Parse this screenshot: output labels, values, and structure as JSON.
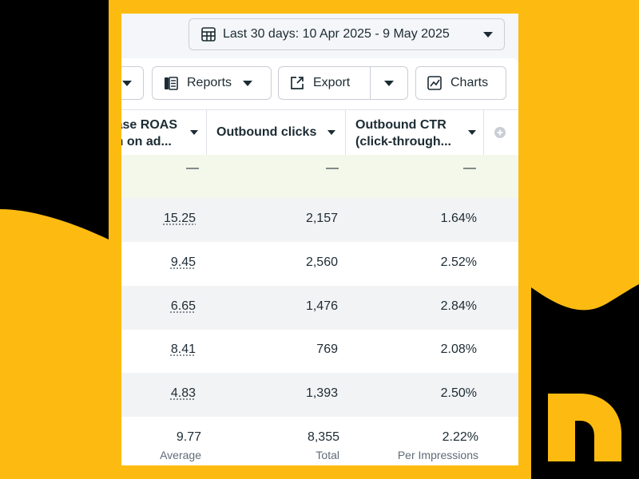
{
  "date_range": {
    "label": "Last 30 days: 10 Apr 2025 - 9 May 2025"
  },
  "toolbar": {
    "reports_label": "Reports",
    "export_label": "Export",
    "charts_label": "Charts"
  },
  "columns": [
    {
      "line1": "ase ROAS",
      "line2": "n on ad..."
    },
    {
      "line1": "Outbound clicks"
    },
    {
      "line1": "Outbound CTR",
      "line2": "(click-through..."
    }
  ],
  "summary_row": {
    "roas": "—",
    "clicks": "—",
    "ctr": "—"
  },
  "rows": [
    {
      "roas": "15.25",
      "clicks": "2,157",
      "ctr": "1.64%"
    },
    {
      "roas": "9.45",
      "clicks": "2,560",
      "ctr": "2.52%"
    },
    {
      "roas": "6.65",
      "clicks": "1,476",
      "ctr": "2.84%"
    },
    {
      "roas": "8.41",
      "clicks": "769",
      "ctr": "2.08%"
    },
    {
      "roas": "4.83",
      "clicks": "1,393",
      "ctr": "2.50%"
    }
  ],
  "totals": {
    "roas": "9.77",
    "roas_label": "Average",
    "clicks": "8,355",
    "clicks_label": "Total",
    "ctr": "2.22%",
    "ctr_label": "Per Impressions"
  },
  "colors": {
    "accent": "#fdbb11",
    "dark": "#000000",
    "summary_bg": "#f4f8ea",
    "zebra": "#f2f3f5"
  }
}
